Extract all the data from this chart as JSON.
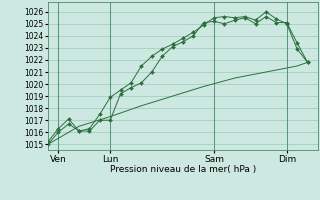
{
  "background_color": "#cce8e0",
  "plot_bg_color": "#cce8e0",
  "grid_color": "#99ccbb",
  "line_color": "#2d6e3e",
  "xlabel": "Pression niveau de la mer( hPa )",
  "day_labels": [
    "Ven",
    "Lun",
    "Sam",
    "Dim"
  ],
  "xlim": [
    0,
    13.0
  ],
  "ylim": [
    1014.5,
    1026.8
  ],
  "yticks": [
    1015,
    1016,
    1017,
    1018,
    1019,
    1020,
    1021,
    1022,
    1023,
    1024,
    1025,
    1026
  ],
  "xtick_positions": [
    0.5,
    3.0,
    8.0,
    11.5
  ],
  "vline_positions": [
    0.5,
    3.0,
    8.0,
    11.5
  ],
  "line1_x": [
    0.0,
    0.5,
    1.0,
    1.5,
    2.0,
    2.5,
    3.0,
    3.5,
    4.0,
    4.5,
    5.0,
    5.5,
    6.0,
    6.5,
    7.0,
    7.5,
    8.0,
    8.5,
    9.0,
    9.5,
    10.0,
    10.5,
    11.0,
    11.5,
    12.0,
    12.5
  ],
  "line1_y": [
    1015.0,
    1016.0,
    1016.7,
    1016.1,
    1016.1,
    1017.0,
    1017.0,
    1019.2,
    1019.7,
    1020.1,
    1021.0,
    1022.3,
    1023.1,
    1023.5,
    1024.0,
    1025.1,
    1025.2,
    1025.0,
    1025.3,
    1025.5,
    1025.0,
    1025.6,
    1025.1,
    1025.1,
    1023.4,
    1021.8
  ],
  "line2_x": [
    0.0,
    0.5,
    1.0,
    1.5,
    2.0,
    2.5,
    3.0,
    3.5,
    4.0,
    4.5,
    5.0,
    5.5,
    6.0,
    6.5,
    7.0,
    7.5,
    8.0,
    8.5,
    9.0,
    9.5,
    10.0,
    10.5,
    11.0,
    11.5,
    12.0,
    12.5
  ],
  "line2_y": [
    1015.2,
    1016.3,
    1017.1,
    1016.1,
    1016.3,
    1017.5,
    1018.9,
    1019.5,
    1020.1,
    1021.5,
    1022.3,
    1022.9,
    1023.3,
    1023.8,
    1024.3,
    1024.9,
    1025.5,
    1025.6,
    1025.5,
    1025.6,
    1025.3,
    1026.0,
    1025.4,
    1025.0,
    1022.9,
    1021.8
  ],
  "line3_x": [
    0.0,
    1.5,
    3.0,
    4.5,
    6.0,
    7.5,
    9.0,
    10.5,
    12.0,
    12.5
  ],
  "line3_y": [
    1015.0,
    1016.5,
    1017.3,
    1018.2,
    1019.0,
    1019.8,
    1020.5,
    1021.0,
    1021.5,
    1021.8
  ]
}
